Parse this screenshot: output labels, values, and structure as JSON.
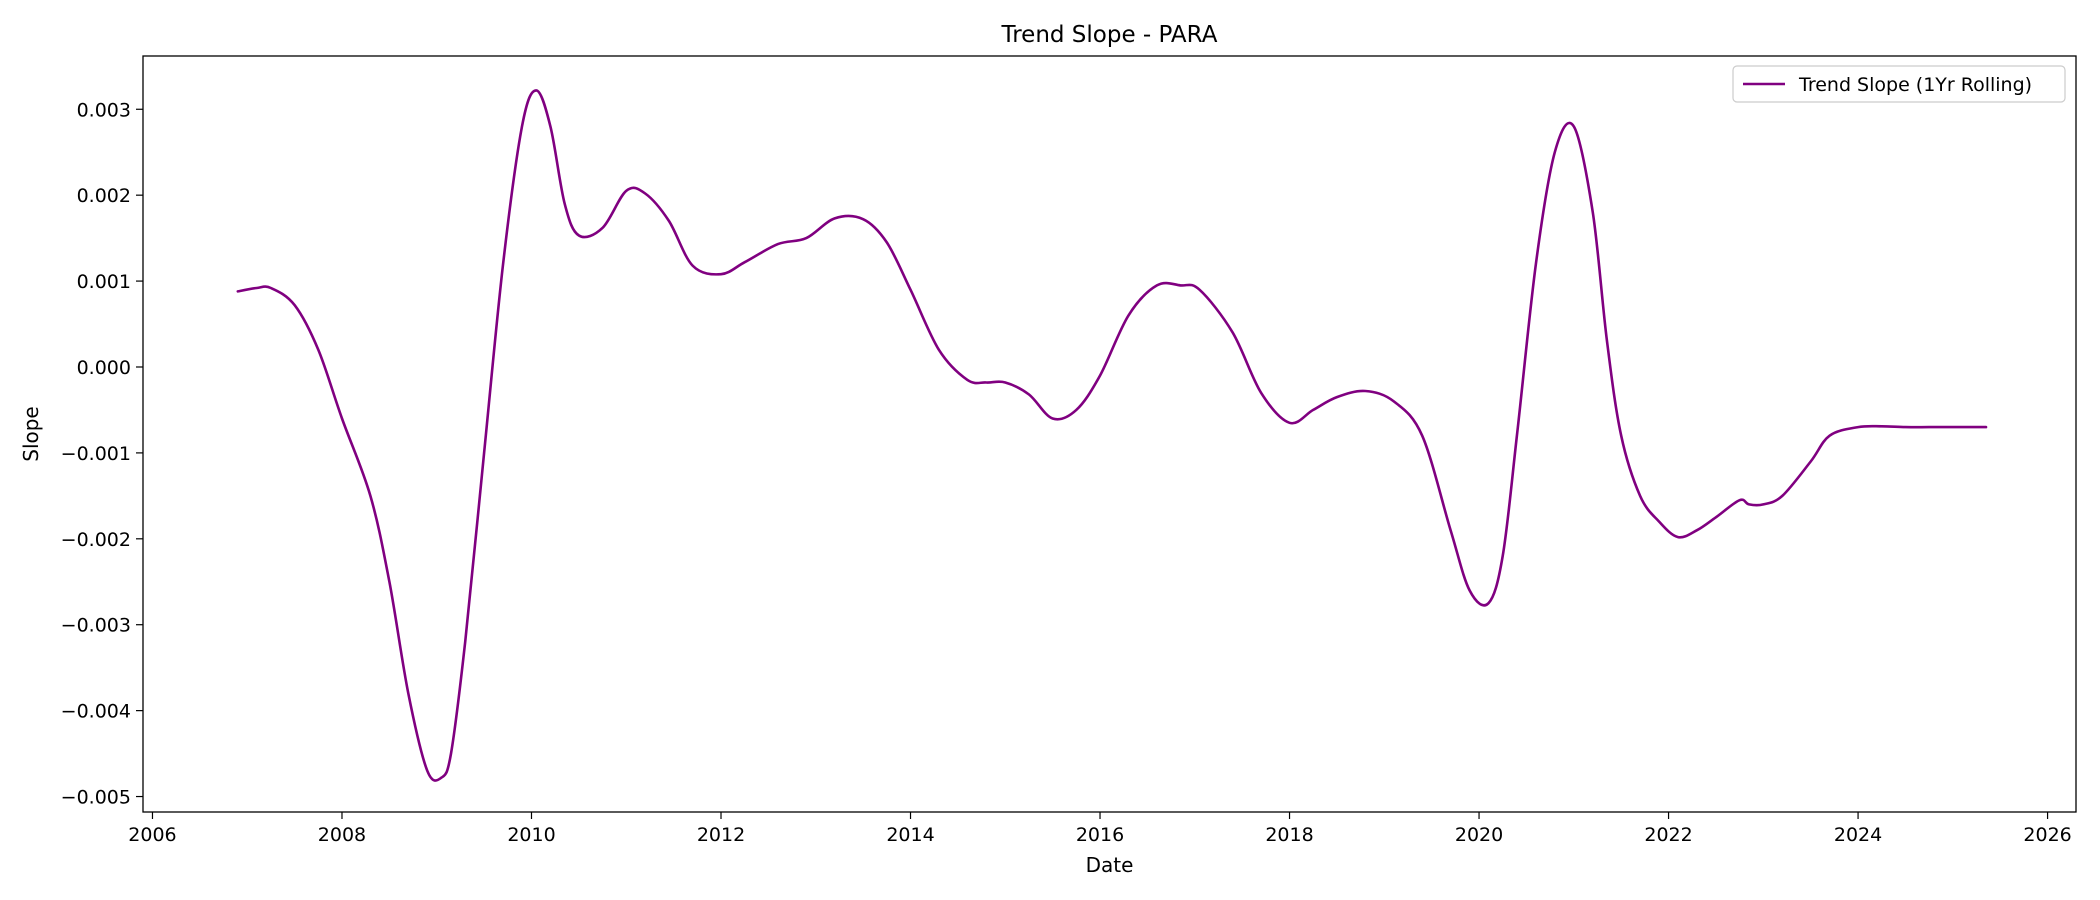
{
  "chart_data": {
    "type": "line",
    "title": "Trend Slope - PARA",
    "xlabel": "Date",
    "ylabel": "Slope",
    "xlim": [
      2005.9,
      2026.3
    ],
    "ylim": [
      -0.00518,
      0.00362
    ],
    "x_ticks": [
      2006,
      2008,
      2010,
      2012,
      2014,
      2016,
      2018,
      2020,
      2022,
      2024,
      2026
    ],
    "x_tick_labels": [
      "2006",
      "2008",
      "2010",
      "2012",
      "2014",
      "2016",
      "2018",
      "2020",
      "2022",
      "2024",
      "2026"
    ],
    "y_ticks": [
      -0.005,
      -0.004,
      -0.003,
      -0.002,
      -0.001,
      0.0,
      0.001,
      0.002,
      0.003
    ],
    "y_tick_labels": [
      "−0.005",
      "−0.004",
      "−0.003",
      "−0.002",
      "−0.001",
      "0.000",
      "0.001",
      "0.002",
      "0.003"
    ],
    "grid": false,
    "legend": {
      "position": "top-right"
    },
    "series": [
      {
        "name": "Trend Slope (1Yr Rolling)",
        "color": "#800080",
        "x": [
          2006.9,
          2007.1,
          2007.25,
          2007.5,
          2007.75,
          2008.0,
          2008.3,
          2008.5,
          2008.7,
          2008.9,
          2009.05,
          2009.15,
          2009.3,
          2009.5,
          2009.7,
          2009.9,
          2010.05,
          2010.2,
          2010.35,
          2010.5,
          2010.75,
          2011.0,
          2011.2,
          2011.45,
          2011.7,
          2012.0,
          2012.25,
          2012.6,
          2012.9,
          2013.2,
          2013.5,
          2013.75,
          2014.0,
          2014.3,
          2014.6,
          2014.8,
          2015.0,
          2015.25,
          2015.5,
          2015.75,
          2016.0,
          2016.3,
          2016.6,
          2016.85,
          2017.05,
          2017.4,
          2017.7,
          2018.0,
          2018.25,
          2018.5,
          2018.8,
          2019.1,
          2019.4,
          2019.7,
          2019.9,
          2020.1,
          2020.25,
          2020.4,
          2020.6,
          2020.8,
          2021.0,
          2021.2,
          2021.35,
          2021.5,
          2021.7,
          2021.9,
          2022.1,
          2022.3,
          2022.5,
          2022.75,
          2022.85,
          2023.0,
          2023.2,
          2023.5,
          2023.7,
          2024.0,
          2024.25,
          2024.5,
          2024.75,
          2025.0,
          2025.2,
          2025.35
        ],
        "y": [
          0.00088,
          0.00092,
          0.00092,
          0.00072,
          0.0002,
          -0.0006,
          -0.0015,
          -0.0025,
          -0.0038,
          -0.0047,
          -0.00478,
          -0.0045,
          -0.0032,
          -0.001,
          0.0012,
          0.0028,
          0.00322,
          0.0028,
          0.0019,
          0.00153,
          0.00162,
          0.00205,
          0.00202,
          0.0017,
          0.00118,
          0.00108,
          0.00122,
          0.00143,
          0.0015,
          0.00173,
          0.00172,
          0.00145,
          0.0009,
          0.0002,
          -0.00015,
          -0.00018,
          -0.00018,
          -0.00032,
          -0.0006,
          -0.0005,
          -0.0001,
          0.0006,
          0.00095,
          0.00095,
          0.0009,
          0.0004,
          -0.0003,
          -0.00065,
          -0.0005,
          -0.00035,
          -0.00028,
          -0.0004,
          -0.0008,
          -0.0019,
          -0.0026,
          -0.00275,
          -0.0022,
          -0.0008,
          0.0012,
          0.0025,
          0.0028,
          0.0018,
          0.0003,
          -0.0008,
          -0.0015,
          -0.0018,
          -0.00198,
          -0.0019,
          -0.00175,
          -0.00155,
          -0.0016,
          -0.0016,
          -0.0015,
          -0.0011,
          -0.0008,
          -0.0007,
          -0.00069,
          -0.0007,
          -0.0007,
          -0.0007,
          -0.0007,
          -0.0007
        ]
      }
    ]
  }
}
